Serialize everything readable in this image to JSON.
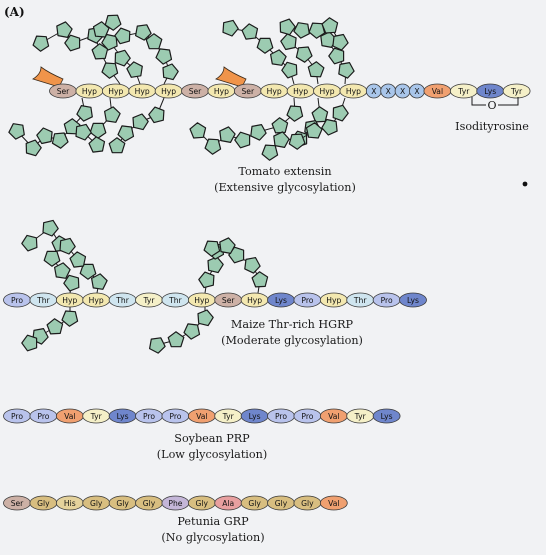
{
  "panel_label": "(A)",
  "residue_colors": {
    "Ser": "#cdb1a6",
    "Hyp": "#f3e8b0",
    "Pro": "#b9c3ec",
    "Thr": "#cfe5ef",
    "Tyr": "#f5f0c8",
    "Lys": "#6f86cc",
    "Val": "#f0a070",
    "X": "#a9c6ea",
    "Gly": "#d8be80",
    "His": "#e4d29c",
    "Phe": "#c4b6d8",
    "Ala": "#e8a0a0"
  },
  "sugar_color": "#9ccbb1",
  "arabinose_color": "#f0944a",
  "molecules": [
    {
      "id": "tomato",
      "residues": [
        "Ser",
        "Hyp",
        "Hyp",
        "Hyp",
        "Hyp",
        "Ser",
        "Hyp",
        "Ser",
        "Hyp",
        "Hyp",
        "Hyp",
        "Hyp",
        "X",
        "X",
        "X",
        "X",
        "Val",
        "Tyr",
        "Lys",
        "Tyr"
      ],
      "caption_line1": "Tomato extensin",
      "caption_line2": "(Extensive glycosylation)"
    },
    {
      "id": "maize",
      "residues": [
        "Pro",
        "Thr",
        "Hyp",
        "Hyp",
        "Thr",
        "Tyr",
        "Thr",
        "Hyp",
        "Ser",
        "Hyp",
        "Lys",
        "Pro",
        "Hyp",
        "Thr",
        "Pro",
        "Lys"
      ],
      "caption_line1": "Maize Thr-rich HGRP",
      "caption_line2": "(Moderate glycosylation)"
    },
    {
      "id": "soybean",
      "residues": [
        "Pro",
        "Pro",
        "Val",
        "Tyr",
        "Lys",
        "Pro",
        "Pro",
        "Val",
        "Tyr",
        "Lys",
        "Pro",
        "Pro",
        "Val",
        "Tyr",
        "Lys"
      ],
      "caption_line1": "Soybean PRP",
      "caption_line2": "(Low glycosylation)"
    },
    {
      "id": "petunia",
      "residues": [
        "Ser",
        "Gly",
        "His",
        "Gly",
        "Gly",
        "Gly",
        "Phe",
        "Gly",
        "Ala",
        "Gly",
        "Gly",
        "Gly",
        "Val"
      ],
      "caption_line1": "Petunia GRP",
      "caption_line2": "(No glycosylation)"
    }
  ],
  "isodityrosine_label": "Isodityrosine",
  "isodityrosine_bridge_atom": "O"
}
